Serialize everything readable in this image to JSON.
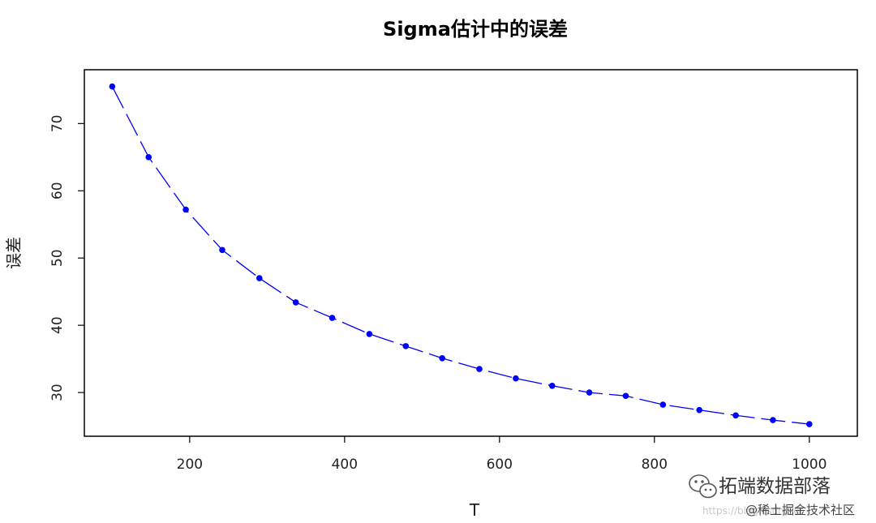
{
  "chart_data": {
    "type": "line",
    "title": "Sigma估计中的误差",
    "xlabel": "T",
    "ylabel": "误差",
    "xlim": [
      64,
      1062
    ],
    "ylim": [
      23.5,
      78
    ],
    "x_ticks": [
      200,
      400,
      600,
      800,
      1000
    ],
    "y_ticks": [
      30,
      40,
      50,
      60,
      70
    ],
    "grid": false,
    "series": [
      {
        "x": [
          100,
          147,
          195,
          242,
          290,
          337,
          384,
          432,
          479,
          526,
          574,
          621,
          668,
          716,
          763,
          811,
          858,
          905,
          953,
          1000
        ],
        "values": [
          75.5,
          65.0,
          57.2,
          51.2,
          47.0,
          43.4,
          41.1,
          38.7,
          36.9,
          35.1,
          33.5,
          32.1,
          31.0,
          30.0,
          29.5,
          28.2,
          27.4,
          26.6,
          25.9,
          25.3
        ],
        "color": "#0000ff",
        "line_style": "dashed",
        "marker": "circle"
      }
    ]
  },
  "watermark": {
    "brand": "拓端数据部落",
    "platform": "@稀土掘金技术社区",
    "url": "https://blog.csdn.net"
  }
}
